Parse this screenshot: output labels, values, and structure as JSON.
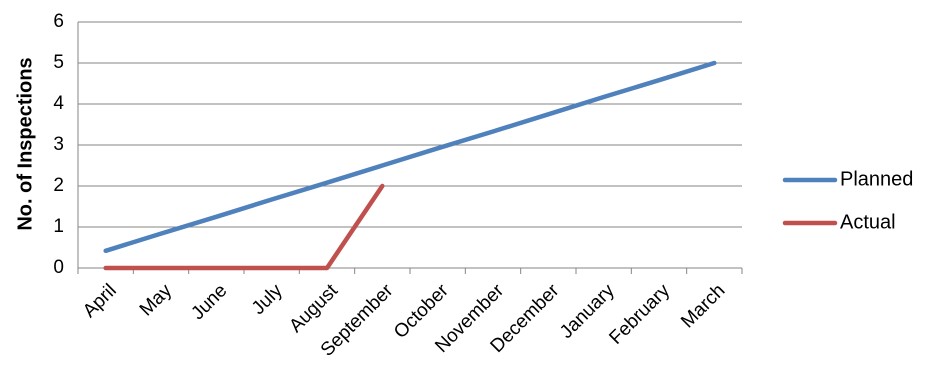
{
  "chart_data": {
    "type": "line",
    "categories": [
      "April",
      "May",
      "June",
      "July",
      "August",
      "September",
      "October",
      "November",
      "December",
      "January",
      "February",
      "March"
    ],
    "series": [
      {
        "name": "Planned",
        "color": "#4F81BD",
        "values": [
          0.42,
          0.84,
          1.25,
          1.67,
          2.08,
          2.5,
          2.92,
          3.33,
          3.75,
          4.17,
          4.58,
          5.0
        ]
      },
      {
        "name": "Actual",
        "color": "#C0504D",
        "values": [
          0,
          0,
          0,
          0,
          0,
          2,
          null,
          null,
          null,
          null,
          null,
          null
        ]
      }
    ],
    "xlabel": "",
    "ylabel": "No. of Inspections",
    "ylim": [
      0,
      6
    ],
    "yticks": [
      0,
      1,
      2,
      3,
      4,
      5,
      6
    ],
    "grid": true,
    "legend_position": "right"
  }
}
